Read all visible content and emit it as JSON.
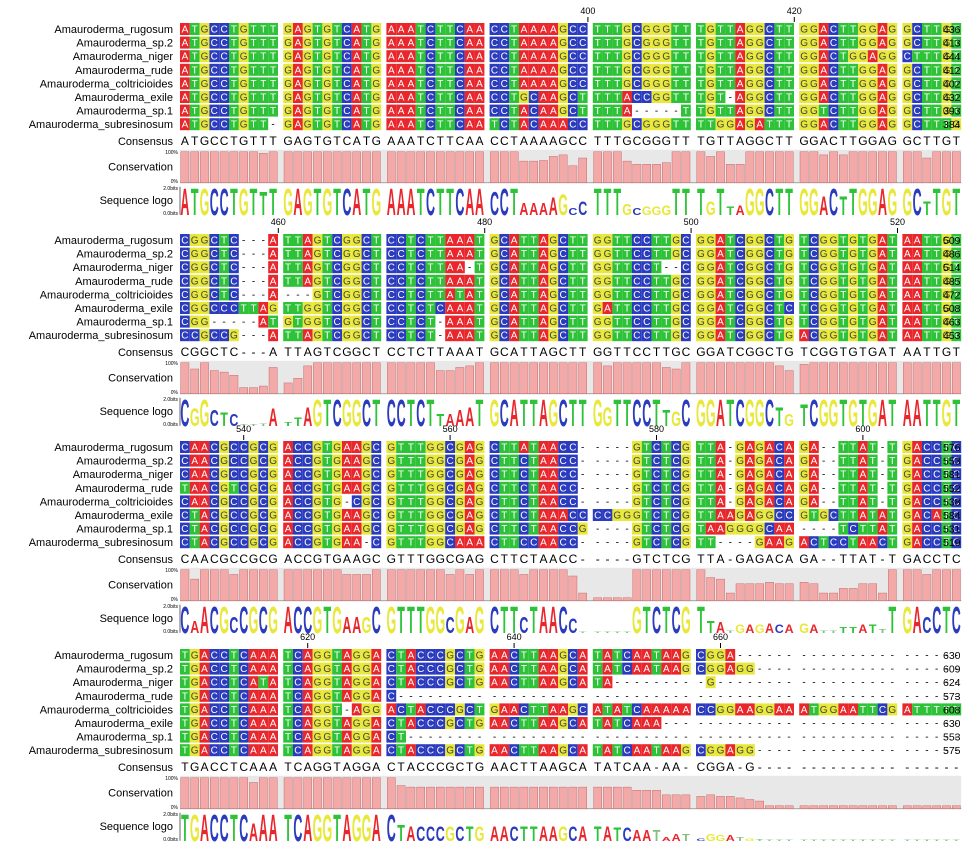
{
  "chart_data": {
    "type": "sequence-alignment",
    "colors": {
      "A": "#e8262b",
      "C": "#2b3bbd",
      "G": "#e8e83a",
      "T": "#2ec238",
      "gap_logo": "#7fbf7f"
    },
    "labels": {
      "consensus": "Consensus",
      "conservation": "Conservation",
      "sequence_logo": "Sequence logo",
      "cons_scale_top": "100%",
      "cons_scale_bottom": "0%",
      "logo_scale_top": "2.0bits",
      "logo_scale_bottom": "0.0bits"
    },
    "sequence_names": [
      "Amauroderma_rugosum",
      "Amauroderma_sp.2",
      "Amauroderma_niger",
      "Amauroderma_rude",
      "Amauroderma_coltricioides",
      "Amauroderma_exile",
      "Amauroderma_sp.1",
      "Amauroderma_subresinosum"
    ],
    "blocks": [
      {
        "ruler": [
          {
            "label": "400",
            "col": 40
          },
          {
            "label": "420",
            "col": 60
          },
          {
            "label": "440",
            "col": 80
          }
        ],
        "sequences": [
          "ATGCCTGTTTGAGTGTCATGAAATCTTCAACCTAAAAGCCTTTGCGGGTTTGTTAGGCTTGGACTTGGAGGCTTGT",
          "ATGCCTGTTTGAGTGTCATGAAATCTTCAACCTAAAAGCCTTTGCGGGTTTGTTAGGCTTGGACTTGGAGGCTTGT",
          "ATGCCTGTTTGAGTGTCATGAAATCTTCAACCTAAAAGCCTTTGCGGGTTTGTTAGGCTTGGACTGGAGGCTTTGT",
          "ATGCCTGTTTGAGTGTCATGAAATCTTCAACCTAAAAGCCTTTGCGGGTTTGTTAGGCTTGGACTTGGAGGCTTGT",
          "ATGCCTGTTTGAGTGTCATGAAATCTTCAACCTAAAAGCCTTTGCGGGTTTGTTAGGCTTGGACTTGGAGGCTTGT",
          "ATGCCTGTTTGAGTGTCATGAAATCTTCAACCTGCAAGCTTTTACCGGTTTGT-AGGCTTGGACTTGGAGGCTTGT",
          "ATGCCTGTTTGAGTGTCATGAAATCTTCAACCTACAAGCTTTTA-----TTGTTAGGCTTGGTCTTGGAGGCTTGT",
          "ATGCCTGTT-GAGTGTCATGAAATCTTCAATCTACAAACCTTTGCGGGTTTTGGAGATTTGGACTTGGAGGCTTTG"
        ],
        "ends": [
          "436",
          "413",
          "444",
          "412",
          "402",
          "432",
          "393",
          "384"
        ],
        "consensus": "ATGCCTGTTTGAGTGTCATGAAATCTTCAACCTAAAAGCCTTTGCGGGTTTGTTAGGCTTGGACTTGGAGGCTTGT",
        "conservation": [
          100,
          100,
          100,
          100,
          100,
          100,
          100,
          100,
          95,
          100,
          100,
          100,
          100,
          100,
          100,
          100,
          100,
          100,
          100,
          100,
          100,
          100,
          100,
          100,
          100,
          100,
          100,
          100,
          100,
          100,
          100,
          100,
          100,
          70,
          70,
          72,
          85,
          90,
          55,
          80,
          100,
          100,
          100,
          70,
          60,
          60,
          60,
          65,
          100,
          100,
          100,
          85,
          100,
          60,
          60,
          100,
          100,
          100,
          100,
          100,
          100,
          100,
          90,
          100,
          90,
          100,
          100,
          100,
          100,
          100,
          100,
          100,
          80,
          100,
          100,
          100
        ],
        "logo": [
          1.95,
          1.95,
          1.95,
          1.95,
          1.95,
          1.95,
          1.95,
          1.95,
          1.7,
          1.95,
          1.95,
          1.95,
          1.95,
          1.95,
          1.95,
          1.95,
          1.95,
          1.95,
          1.95,
          1.95,
          1.95,
          1.95,
          1.95,
          1.95,
          1.95,
          1.95,
          1.95,
          1.95,
          1.95,
          1.95,
          1.7,
          1.95,
          1.95,
          0.9,
          0.9,
          0.9,
          1.3,
          1.5,
          0.5,
          1.0,
          1.95,
          1.95,
          1.95,
          0.8,
          0.5,
          0.6,
          0.6,
          0.7,
          1.95,
          1.95,
          1.95,
          1.0,
          1.95,
          0.6,
          0.7,
          1.95,
          1.95,
          1.95,
          1.95,
          1.95,
          1.95,
          1.95,
          1.4,
          1.95,
          1.4,
          1.95,
          1.95,
          1.95,
          1.95,
          1.95,
          1.95,
          1.95,
          1.0,
          1.95,
          1.95,
          1.95
        ]
      },
      {
        "ruler": [
          {
            "label": "460",
            "col": 10
          },
          {
            "label": "480",
            "col": 30
          },
          {
            "label": "500",
            "col": 50
          },
          {
            "label": "520",
            "col": 70
          }
        ],
        "sequences": [
          "CGGCTC---ATTAGTCGGCTCCTCTTAAATGCATTAGCTTGGTTCCTTGCGGATCGGCTGTCGGTGTGATAATTGT",
          "CGGCTC---ATTAGTCGGCTCCTCTTAAATGCATTAGCTTGGTTCCTTGCGGATCGGCTGTCGGTGTGATAATTGT",
          "CGGCTC---ATTAGTCGGCTCCTCTTAA-TGCATTAGCTTGGTTCCT--CGGATCGGCTGTCGGTGTGATAATTGT",
          "CGGCTC---ATTAGTCGGCTCCTCTTAAATGCATTAGCTTGGTTCCTTGCGGATCGGCTGTCGGTGTGATAATTGT",
          "CGGCTC---A---GTCGGCTCCTCTTATATGCATTAGCTTGGTTCCTTGCGGATCGGCTGTCGGTGTGATAATTGT",
          "CGGCCCTTAGTTGGTCGGCTCCTCTCAAATGCATTAGCTTGATTCCTTGCGGATCGGCTCTCGGTGTGATAATTGT",
          "CGG-----ATGTGGTCGGCTCCTCT-AAATGCATTAGCTTGGTTCCTTGCGGATCGGCTGTCGGTGTGATAATTGT",
          "CCGCCG---ATTAGTCGGCTCCTCT-AAATGCATTAGCTTGGTTCCTTGCGGATCGGCTGACGGTGTGATAATTGT"
        ],
        "ends": [
          "509",
          "486",
          "514",
          "485",
          "472",
          "508",
          "463",
          "453"
        ],
        "consensus": "CGGCTC---ATTAGTCGGCTCCTCTTAAATGCATTAGCTTGGTTCCTTGCGGATCGGCTGTCGGTGTGATAATTGT",
        "conservation": [
          100,
          80,
          100,
          75,
          70,
          60,
          20,
          20,
          25,
          85,
          35,
          50,
          90,
          100,
          100,
          100,
          100,
          100,
          100,
          100,
          100,
          100,
          100,
          100,
          100,
          75,
          75,
          85,
          90,
          100,
          100,
          100,
          100,
          100,
          100,
          100,
          100,
          100,
          100,
          100,
          100,
          90,
          100,
          100,
          100,
          100,
          100,
          85,
          80,
          100,
          100,
          100,
          100,
          100,
          100,
          100,
          100,
          100,
          90,
          75,
          95,
          100,
          100,
          100,
          100,
          100,
          100,
          100,
          100,
          100,
          100,
          100,
          100,
          100,
          100,
          100
        ],
        "logo": [
          1.95,
          1.3,
          1.95,
          1.2,
          1.0,
          0.9,
          0.15,
          0.15,
          0.2,
          1.3,
          0.3,
          0.6,
          1.4,
          1.95,
          1.95,
          1.95,
          1.95,
          1.95,
          1.95,
          1.95,
          1.95,
          1.95,
          1.95,
          1.95,
          1.95,
          0.9,
          0.9,
          1.2,
          1.4,
          1.95,
          1.95,
          1.95,
          1.95,
          1.95,
          1.95,
          1.95,
          1.95,
          1.95,
          1.95,
          1.95,
          1.95,
          1.4,
          1.95,
          1.95,
          1.95,
          1.95,
          1.95,
          1.2,
          1.1,
          1.95,
          1.95,
          1.95,
          1.95,
          1.95,
          1.95,
          1.95,
          1.95,
          1.95,
          1.4,
          0.9,
          1.6,
          1.95,
          1.95,
          1.95,
          1.95,
          1.95,
          1.95,
          1.95,
          1.95,
          1.95,
          1.95,
          1.95,
          1.95,
          1.95,
          1.95,
          1.95
        ]
      },
      {
        "ruler": [
          {
            "label": "540",
            "col": 7
          },
          {
            "label": "560",
            "col": 27
          },
          {
            "label": "580",
            "col": 47
          },
          {
            "label": "600",
            "col": 67
          }
        ],
        "sequences": [
          "CAACGCCGCGACCGTGAAGCGTTTGGCGAGCTTATAACC-----GTCTCGTTA-GAGACAGA--TTAT-TGACCTC",
          "CAACGCCGCGACCGTGAAGCGTTTGGCGAGCTTCTAACC-----GTCTCGTTA-GAGACAGA--TTAT-TGACCTC",
          "CAACGCCGCGACCGTGAAGCGTTTGGCGAGCTTCTAACC-----GTCTCGTTA-GAGACAGA--TTAT-TGACCTC",
          "TAACGTCGCGACCGTGAAGCGTTTGGCGAGCTTCTAACC-----GTCTCGTTA-GAGACAGA--TTAT-TGACCTC",
          "CAACGCCGCGACCGTG-CGCGTTTGGCGAGCTTCTAACC-----GTCTCGTTA-GAGACAGA--TTAT-TGACCTC",
          "CTACGCCGCGACCGTGAAGCGTTTGGCGAGCTTCTAAACCCCGGGTCTCGTTAAGAGGCCGTGCTTATATGACATC",
          "CTACGCCGCGACCGTGAAGCGTTTGGCGAGCTTCTAACCG----GTCTCGTAAGGGGCAA----TCTTATGACCTC",
          "CTACGCCGCGACCGTGAA-CGTTTGGCAAACTTCCAACC-----GTCTCGTT----GAAGACTCCTAACTGACCTC"
        ],
        "ends": [
          "576",
          "553",
          "581",
          "552",
          "538",
          "584",
          "531",
          "519"
        ],
        "consensus": "CAACGCCGCGACCGTGAAGCGTTTGGCGAGCTTCTAACC-----GTCTCGTTA-GAGACAGA--TTAT-TGACCTC",
        "conservation": [
          100,
          70,
          100,
          100,
          100,
          85,
          100,
          100,
          100,
          100,
          100,
          100,
          100,
          100,
          100,
          100,
          85,
          85,
          85,
          100,
          100,
          100,
          100,
          100,
          100,
          100,
          85,
          100,
          85,
          100,
          100,
          100,
          100,
          85,
          100,
          100,
          100,
          100,
          80,
          25,
          10,
          10,
          10,
          10,
          100,
          100,
          100,
          100,
          100,
          100,
          100,
          75,
          70,
          25,
          55,
          55,
          55,
          60,
          55,
          55,
          60,
          55,
          25,
          25,
          40,
          40,
          55,
          55,
          25,
          100,
          100,
          100,
          85,
          100,
          100,
          100
        ],
        "logo": [
          1.95,
          0.9,
          1.95,
          1.95,
          1.95,
          1.2,
          1.95,
          1.95,
          1.95,
          1.95,
          1.95,
          1.95,
          1.95,
          1.95,
          1.95,
          1.95,
          1.2,
          1.2,
          1.2,
          1.95,
          1.95,
          1.95,
          1.95,
          1.95,
          1.95,
          1.95,
          1.2,
          1.95,
          1.2,
          1.95,
          1.95,
          1.95,
          1.95,
          1.2,
          1.95,
          1.95,
          1.95,
          1.95,
          1.1,
          0.1,
          0.1,
          0.1,
          0.1,
          0.1,
          1.95,
          1.95,
          1.95,
          1.95,
          1.95,
          1.95,
          1.95,
          0.9,
          0.8,
          0.2,
          0.6,
          0.6,
          0.6,
          0.7,
          0.6,
          0.6,
          0.7,
          0.6,
          0.2,
          0.2,
          0.4,
          0.4,
          0.6,
          0.6,
          0.3,
          1.95,
          1.95,
          1.95,
          1.2,
          1.95,
          1.95,
          1.95
        ]
      },
      {
        "ruler": [
          {
            "label": "620",
            "col": 13
          },
          {
            "label": "640",
            "col": 33
          },
          {
            "label": "660",
            "col": 53
          }
        ],
        "sequences": [
          "TGACCTCAAATCAGGTAGGACTACCCGCTGAACTTAAGCATATCAATAAGCGGA----------------------",
          "TGACCTCAAATCAGGTAGGACTACCCGCTGAACTTAAGCATATCAATAAGCGGAGG--------------------",
          "TGACCTCATATCAGGTAGGACTACCCGCTGAACTTAAGCATA---------G------------------------",
          "TGACCTCAAATCAGGTAGGAC-------------------------------------------------------",
          "TGACCTCAAATCAGGT-AGGACTACCCGCTGAACTTAAGCATATCAAAAACCGGAAGGAAATGGAATTCGATTTTT",
          "TGACCTCAAATCAGGTAGGACTACCCGCTGAACTTAAGCATATCAAA-----------------------------",
          "TGACCTCAAATCAGGTAGGACT------------------------------------------------------",
          "TGACCTCAAATCAGGTAGGACTACCCGCTGAACTTAAGCATATCAATAAGCGGAGG--------------------"
        ],
        "ends": [
          "630",
          "609",
          "624",
          "573",
          "608",
          "630",
          "553",
          "575"
        ],
        "consensus": "TGACCTCAAATCAGGTAGGACTACCCGCTGAACTTAAGCATATCAA-AA-CGGA-G--------------------",
        "conservation": [
          100,
          100,
          100,
          100,
          100,
          100,
          100,
          85,
          100,
          100,
          100,
          100,
          100,
          100,
          100,
          100,
          100,
          100,
          100,
          100,
          100,
          75,
          70,
          70,
          70,
          70,
          70,
          70,
          70,
          70,
          70,
          70,
          70,
          70,
          70,
          70,
          70,
          70,
          70,
          70,
          70,
          70,
          70,
          70,
          60,
          60,
          60,
          45,
          45,
          45,
          40,
          45,
          40,
          40,
          35,
          30,
          25,
          10,
          10,
          10,
          10,
          10,
          10,
          10,
          10,
          10,
          10,
          10,
          10,
          10,
          10,
          10,
          10,
          10,
          10,
          10
        ],
        "logo": [
          1.95,
          1.95,
          1.95,
          1.95,
          1.95,
          1.95,
          1.95,
          1.3,
          1.95,
          1.95,
          1.95,
          1.95,
          1.95,
          1.95,
          1.95,
          1.95,
          1.95,
          1.95,
          1.95,
          1.95,
          1.95,
          1.2,
          1.1,
          1.1,
          1.1,
          1.1,
          1.1,
          1.1,
          1.1,
          1.1,
          1.1,
          1.1,
          1.1,
          1.1,
          1.1,
          1.1,
          1.1,
          1.1,
          1.1,
          1.1,
          1.1,
          1.1,
          1.0,
          1.0,
          0.8,
          0.8,
          0.8,
          0.3,
          0.5,
          0.5,
          0.2,
          0.5,
          0.4,
          0.4,
          0.3,
          0.2,
          0.15,
          0.05,
          0.05,
          0.05,
          0.05,
          0.05,
          0.05,
          0.05,
          0.05,
          0.05,
          0.05,
          0.05,
          0.05,
          0.05,
          0.05,
          0.05,
          0.05,
          0.05,
          0.05,
          0.05
        ]
      }
    ]
  }
}
